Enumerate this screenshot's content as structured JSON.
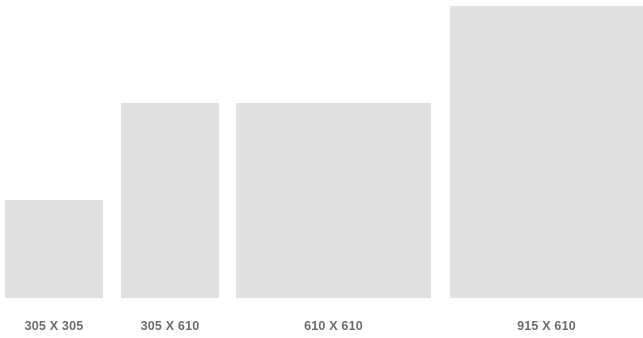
{
  "sizes": [
    {
      "label": "305 X 305",
      "width": 305,
      "height": 305
    },
    {
      "label": "305 X 610",
      "width": 305,
      "height": 610
    },
    {
      "label": "610 X 610",
      "width": 610,
      "height": 610
    },
    {
      "label": "915 X 610",
      "width": 915,
      "height": 610
    }
  ],
  "colors": {
    "tile": "#e0e0e2",
    "label": "#6b6b6b",
    "background": "#ffffff"
  }
}
